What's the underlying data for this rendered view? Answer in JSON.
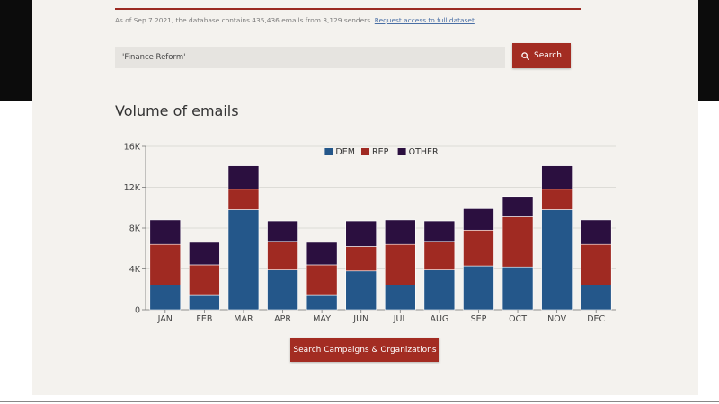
{
  "info": {
    "text": "As of Sep 7 2021, the database contains 435,436 emails from 3,129 senders.",
    "link_label": "Request access to full dataset"
  },
  "search": {
    "value": "'Finance Reform'",
    "button_label": "Search",
    "icon": "search-icon"
  },
  "chart_heading": "Volume of emails",
  "cta_label": "Search Campaigns & Organizations",
  "colors": {
    "panel_bg": "#f4f2ee",
    "accent": "#a32c22",
    "dem": "#24578a",
    "rep": "#a02a22",
    "other": "#2b0f3f"
  },
  "chart_data": {
    "type": "bar",
    "stacked": true,
    "title": "Volume of emails",
    "xlabel": "",
    "ylabel": "",
    "categories": [
      "JAN",
      "FEB",
      "MAR",
      "APR",
      "MAY",
      "JUN",
      "JUL",
      "AUG",
      "SEP",
      "OCT",
      "NOV",
      "DEC"
    ],
    "series": [
      {
        "name": "DEM",
        "color": "#24578a",
        "values": [
          2400,
          1400,
          9800,
          3900,
          1400,
          3800,
          2400,
          3900,
          4300,
          4200,
          9800,
          2400
        ]
      },
      {
        "name": "REP",
        "color": "#a02a22",
        "values": [
          4000,
          3000,
          2000,
          2800,
          3000,
          2400,
          4000,
          2800,
          3500,
          4900,
          2000,
          4000
        ]
      },
      {
        "name": "OTHER",
        "color": "#2b0f3f",
        "values": [
          2400,
          2200,
          2300,
          2000,
          2200,
          2500,
          2400,
          2000,
          2100,
          2000,
          2300,
          2400
        ]
      }
    ],
    "yticks": [
      0,
      4000,
      8000,
      12000,
      16000
    ],
    "ytick_labels": [
      "0",
      "4K",
      "8K",
      "12K",
      "16K"
    ],
    "ylim": [
      0,
      16000
    ],
    "grid": true,
    "legend": "top-center"
  }
}
